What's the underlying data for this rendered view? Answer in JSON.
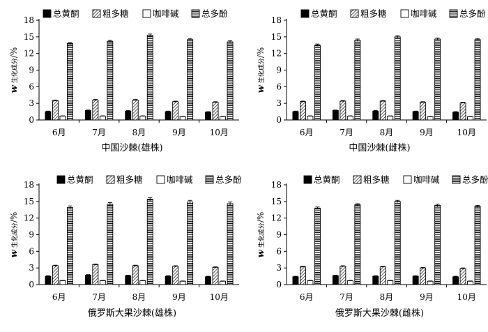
{
  "legend_labels": [
    "总黄酮",
    "粗多糖",
    "咖啡碱",
    "总多酚"
  ],
  "y_axis_label_main": "w",
  "y_axis_label_sub": "生化成分",
  "y_axis_label_unit": "/%",
  "chart_data": [
    {
      "type": "bar",
      "title": "中国沙棘(雄株)",
      "categories": [
        "6月",
        "7月",
        "8月",
        "9月",
        "10月"
      ],
      "ylim": [
        0,
        18
      ],
      "yticks": [
        0,
        3,
        6,
        9,
        12,
        15,
        18
      ],
      "series": [
        {
          "name": "总黄酮",
          "values": [
            1.5,
            1.7,
            1.6,
            1.5,
            1.4
          ],
          "errors": [
            0.1,
            0.1,
            0.1,
            0.1,
            0.1
          ]
        },
        {
          "name": "粗多糖",
          "values": [
            3.5,
            3.6,
            3.6,
            3.3,
            3.2
          ],
          "errors": [
            0.1,
            0.1,
            0.1,
            0.1,
            0.1
          ]
        },
        {
          "name": "咖啡碱",
          "values": [
            0.7,
            0.7,
            0.7,
            0.6,
            0.6
          ],
          "errors": [
            0.05,
            0.05,
            0.05,
            0.05,
            0.05
          ]
        },
        {
          "name": "总多酚",
          "values": [
            13.8,
            14.2,
            15.3,
            14.5,
            14.1
          ],
          "errors": [
            0.2,
            0.2,
            0.2,
            0.2,
            0.2
          ]
        }
      ]
    },
    {
      "type": "bar",
      "title": "中国沙棘(雌株)",
      "categories": [
        "6月",
        "7月",
        "8月",
        "9月",
        "10月"
      ],
      "ylim": [
        0,
        18
      ],
      "yticks": [
        0,
        3,
        6,
        9,
        12,
        15,
        18
      ],
      "series": [
        {
          "name": "总黄酮",
          "values": [
            1.5,
            1.7,
            1.6,
            1.5,
            1.4
          ],
          "errors": [
            0.1,
            0.1,
            0.1,
            0.1,
            0.1
          ]
        },
        {
          "name": "粗多糖",
          "values": [
            3.3,
            3.4,
            3.4,
            3.2,
            3.1
          ],
          "errors": [
            0.1,
            0.1,
            0.1,
            0.1,
            0.1
          ]
        },
        {
          "name": "咖啡碱",
          "values": [
            0.7,
            0.7,
            0.7,
            0.6,
            0.6
          ],
          "errors": [
            0.05,
            0.05,
            0.05,
            0.05,
            0.05
          ]
        },
        {
          "name": "总多酚",
          "values": [
            13.5,
            14.4,
            15.0,
            14.6,
            14.5
          ],
          "errors": [
            0.2,
            0.2,
            0.2,
            0.2,
            0.2
          ]
        }
      ]
    },
    {
      "type": "bar",
      "title": "俄罗斯大果沙棘(雄株)",
      "categories": [
        "6月",
        "7月",
        "8月",
        "9月",
        "10月"
      ],
      "ylim": [
        0,
        18
      ],
      "yticks": [
        0,
        3,
        6,
        9,
        12,
        15,
        18
      ],
      "series": [
        {
          "name": "总黄酮",
          "values": [
            1.5,
            1.7,
            1.6,
            1.5,
            1.4
          ],
          "errors": [
            0.1,
            0.1,
            0.1,
            0.1,
            0.1
          ]
        },
        {
          "name": "粗多糖",
          "values": [
            3.4,
            3.6,
            3.4,
            3.3,
            3.1
          ],
          "errors": [
            0.1,
            0.1,
            0.1,
            0.1,
            0.1
          ]
        },
        {
          "name": "咖啡碱",
          "values": [
            0.7,
            0.7,
            0.7,
            0.6,
            0.6
          ],
          "errors": [
            0.05,
            0.05,
            0.05,
            0.05,
            0.05
          ]
        },
        {
          "name": "总多酚",
          "values": [
            13.9,
            14.5,
            15.4,
            14.9,
            14.6
          ],
          "errors": [
            0.3,
            0.3,
            0.3,
            0.3,
            0.3
          ]
        }
      ]
    },
    {
      "type": "bar",
      "title": "俄罗斯大果沙棘(雌株)",
      "categories": [
        "6月",
        "7月",
        "8月",
        "9月",
        "10月"
      ],
      "ylim": [
        0,
        18
      ],
      "yticks": [
        0,
        3,
        6,
        9,
        12,
        15,
        18
      ],
      "series": [
        {
          "name": "总黄酮",
          "values": [
            1.4,
            1.6,
            1.5,
            1.5,
            1.4
          ],
          "errors": [
            0.1,
            0.1,
            0.1,
            0.1,
            0.1
          ]
        },
        {
          "name": "粗多糖",
          "values": [
            3.2,
            3.3,
            3.2,
            3.0,
            2.9
          ],
          "errors": [
            0.1,
            0.1,
            0.1,
            0.1,
            0.1
          ]
        },
        {
          "name": "咖啡碱",
          "values": [
            0.7,
            0.7,
            0.7,
            0.6,
            0.6
          ],
          "errors": [
            0.05,
            0.05,
            0.05,
            0.05,
            0.05
          ]
        },
        {
          "name": "总多酚",
          "values": [
            13.8,
            14.4,
            15.0,
            14.3,
            14.1
          ],
          "errors": [
            0.2,
            0.2,
            0.2,
            0.2,
            0.2
          ]
        }
      ]
    }
  ]
}
